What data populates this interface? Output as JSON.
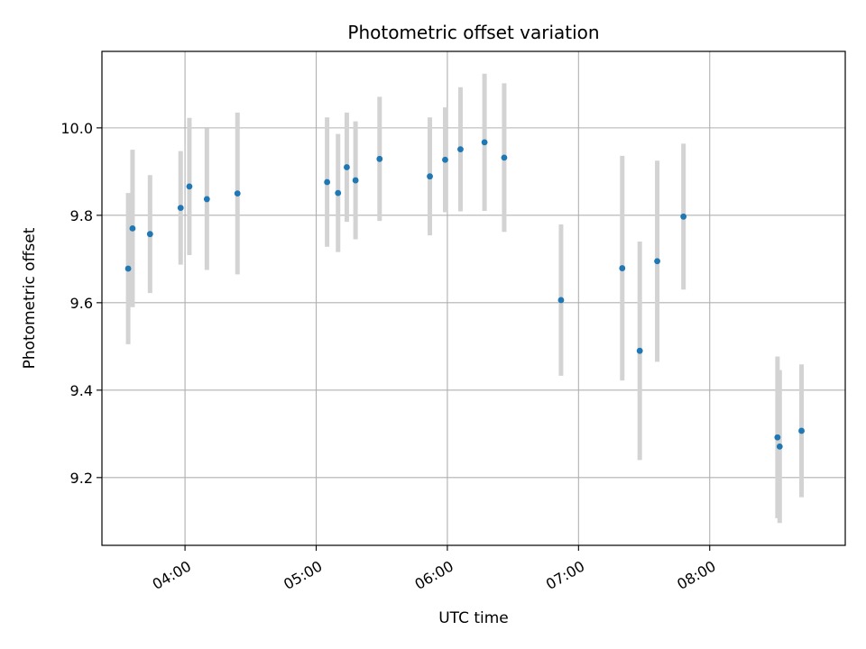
{
  "chart_data": {
    "type": "scatter",
    "title": "Photometric offset variation",
    "xlabel": "UTC time",
    "ylabel": "Photometric offset",
    "x_tick_labels": [
      "04:00",
      "05:00",
      "06:00",
      "07:00",
      "08:00"
    ],
    "y_tick_labels": [
      "9.2",
      "9.4",
      "9.6",
      "9.8",
      "10.0"
    ],
    "x_ticks": [
      "04:00",
      "05:00",
      "06:00",
      "07:00",
      "08:00"
    ],
    "y_ticks": [
      9.2,
      9.4,
      9.6,
      9.8,
      10.0
    ],
    "xlim": [
      "03:22",
      "09:02"
    ],
    "ylim": [
      9.045,
      10.175
    ],
    "grid": true,
    "colors": {
      "point": "#1f77b4",
      "errorbar": "#d3d3d3",
      "grid": "#b0b0b0"
    },
    "series": [
      {
        "points": [
          {
            "x": "03:34",
            "y": 9.678,
            "yerr": 0.173
          },
          {
            "x": "03:36",
            "y": 9.77,
            "yerr": 0.18
          },
          {
            "x": "03:44",
            "y": 9.757,
            "yerr": 0.135
          },
          {
            "x": "03:58",
            "y": 9.817,
            "yerr": 0.13
          },
          {
            "x": "04:02",
            "y": 9.866,
            "yerr": 0.157
          },
          {
            "x": "04:10",
            "y": 9.837,
            "yerr": 0.162
          },
          {
            "x": "04:24",
            "y": 9.85,
            "yerr": 0.185
          },
          {
            "x": "05:05",
            "y": 9.876,
            "yerr": 0.148
          },
          {
            "x": "05:10",
            "y": 9.851,
            "yerr": 0.135
          },
          {
            "x": "05:14",
            "y": 9.91,
            "yerr": 0.125
          },
          {
            "x": "05:18",
            "y": 9.88,
            "yerr": 0.135
          },
          {
            "x": "05:29",
            "y": 9.929,
            "yerr": 0.142
          },
          {
            "x": "05:52",
            "y": 9.889,
            "yerr": 0.135
          },
          {
            "x": "05:59",
            "y": 9.927,
            "yerr": 0.12
          },
          {
            "x": "06:06",
            "y": 9.951,
            "yerr": 0.142
          },
          {
            "x": "06:17",
            "y": 9.967,
            "yerr": 0.157
          },
          {
            "x": "06:26",
            "y": 9.932,
            "yerr": 0.17
          },
          {
            "x": "06:52",
            "y": 9.606,
            "yerr": 0.173
          },
          {
            "x": "07:20",
            "y": 9.679,
            "yerr": 0.257
          },
          {
            "x": "07:28",
            "y": 9.49,
            "yerr": 0.25
          },
          {
            "x": "07:36",
            "y": 9.695,
            "yerr": 0.23
          },
          {
            "x": "07:48",
            "y": 9.797,
            "yerr": 0.167
          },
          {
            "x": "08:31",
            "y": 9.292,
            "yerr": 0.185
          },
          {
            "x": "08:32",
            "y": 9.271,
            "yerr": 0.175
          },
          {
            "x": "08:42",
            "y": 9.307,
            "yerr": 0.152
          }
        ]
      }
    ]
  }
}
